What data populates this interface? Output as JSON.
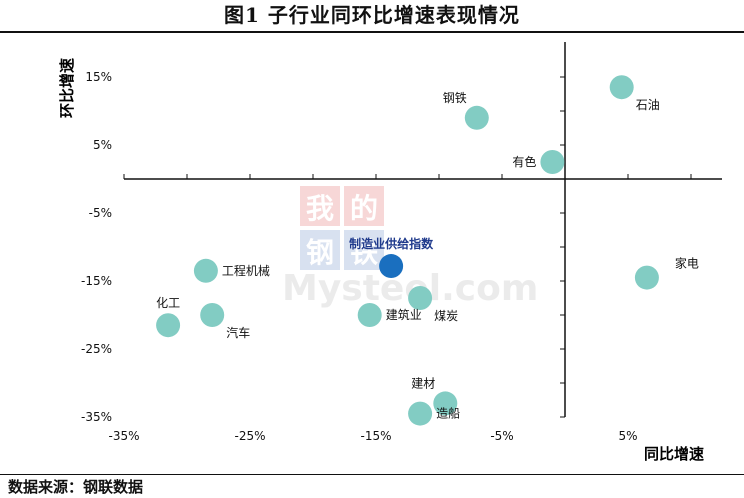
{
  "title": "图1 子行业同环比增速表现情况",
  "source": "数据来源：钢联数据",
  "watermark": {
    "line1": "我的",
    "line2": "钢铁",
    "site": "Mysteel.com"
  },
  "chart_data": {
    "type": "scatter",
    "xlabel": "同比增速",
    "ylabel": "环比增速",
    "xlim": [
      -35,
      10
    ],
    "ylim": [
      -35,
      20
    ],
    "xticks": [
      "-35%",
      "-25%",
      "-15%",
      "-5%",
      "5%"
    ],
    "yticks": [
      "15%",
      "5%",
      "-5%",
      "-15%",
      "-25%",
      "-35%"
    ],
    "points": [
      {
        "label": "石油",
        "x": 4.5,
        "y": 13.5,
        "label_pos": "below-right"
      },
      {
        "label": "钢铁",
        "x": -7,
        "y": 9,
        "label_pos": "above-left"
      },
      {
        "label": "有色",
        "x": -1,
        "y": 2.5,
        "label_pos": "left"
      },
      {
        "label": "工程机械",
        "x": -28.5,
        "y": -13.5,
        "label_pos": "right"
      },
      {
        "label": "制造业供给指数",
        "x": -13.8,
        "y": -12.8,
        "label_pos": "above",
        "highlight": true
      },
      {
        "label": "家电",
        "x": 6.5,
        "y": -14.5,
        "label_pos": "above-right"
      },
      {
        "label": "煤炭",
        "x": -11.5,
        "y": -17.5,
        "label_pos": "below-right"
      },
      {
        "label": "建筑业",
        "x": -15.5,
        "y": -20,
        "label_pos": "right"
      },
      {
        "label": "化工",
        "x": -31.5,
        "y": -21.5,
        "label_pos": "above"
      },
      {
        "label": "汽车",
        "x": -28,
        "y": -20,
        "label_pos": "below-right"
      },
      {
        "label": "建材",
        "x": -9.5,
        "y": -33,
        "label_pos": "above-left"
      },
      {
        "label": "造船",
        "x": -11.5,
        "y": -34.5,
        "label_pos": "right"
      }
    ],
    "colors": {
      "point": "#82CCC3",
      "highlight": "#1A6FBF",
      "highlight_label": "#1F3A8C"
    }
  }
}
